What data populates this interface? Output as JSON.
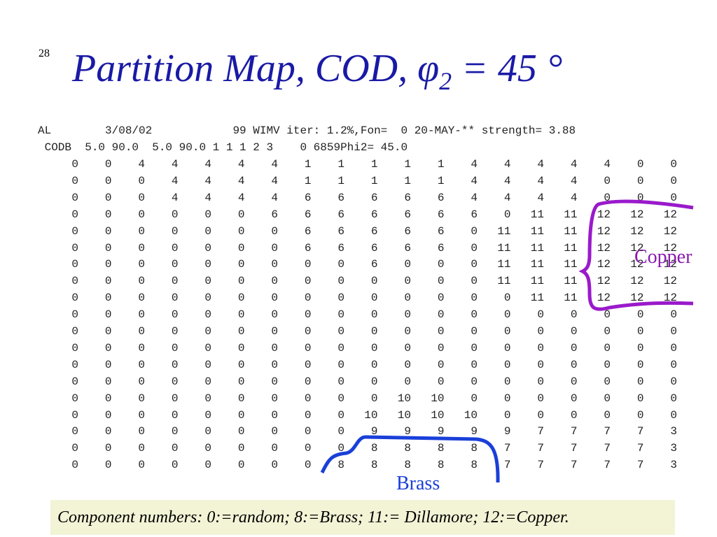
{
  "slide_number": "28",
  "title": {
    "main": "Partition Map, COD, ",
    "symbol": "φ",
    "subscript": "2",
    "rest": " = 45 °"
  },
  "header_lines": [
    "AL        3/08/02            99 WIMV iter: 1.2%,Fon=  0 20-MAY-** strength= 3.88",
    " CODB  5.0 90.0  5.0 90.0 1 1 1 2 3    0 6859Phi2= 45.0"
  ],
  "table": {
    "rows": [
      [
        0,
        0,
        4,
        4,
        4,
        4,
        4,
        1,
        1,
        1,
        1,
        1,
        4,
        4,
        4,
        4,
        4,
        0,
        0
      ],
      [
        0,
        0,
        0,
        4,
        4,
        4,
        4,
        1,
        1,
        1,
        1,
        1,
        4,
        4,
        4,
        4,
        0,
        0,
        0
      ],
      [
        0,
        0,
        0,
        4,
        4,
        4,
        4,
        6,
        6,
        6,
        6,
        6,
        4,
        4,
        4,
        4,
        0,
        0,
        0
      ],
      [
        0,
        0,
        0,
        0,
        0,
        0,
        6,
        6,
        6,
        6,
        6,
        6,
        6,
        0,
        11,
        11,
        12,
        12,
        12
      ],
      [
        0,
        0,
        0,
        0,
        0,
        0,
        0,
        6,
        6,
        6,
        6,
        6,
        0,
        11,
        11,
        11,
        12,
        12,
        12
      ],
      [
        0,
        0,
        0,
        0,
        0,
        0,
        0,
        6,
        6,
        6,
        6,
        6,
        0,
        11,
        11,
        11,
        12,
        12,
        12
      ],
      [
        0,
        0,
        0,
        0,
        0,
        0,
        0,
        0,
        0,
        6,
        0,
        0,
        0,
        11,
        11,
        11,
        12,
        12,
        12
      ],
      [
        0,
        0,
        0,
        0,
        0,
        0,
        0,
        0,
        0,
        0,
        0,
        0,
        0,
        11,
        11,
        11,
        12,
        12,
        12
      ],
      [
        0,
        0,
        0,
        0,
        0,
        0,
        0,
        0,
        0,
        0,
        0,
        0,
        0,
        0,
        11,
        11,
        12,
        12,
        12
      ],
      [
        0,
        0,
        0,
        0,
        0,
        0,
        0,
        0,
        0,
        0,
        0,
        0,
        0,
        0,
        0,
        0,
        0,
        0,
        0
      ],
      [
        0,
        0,
        0,
        0,
        0,
        0,
        0,
        0,
        0,
        0,
        0,
        0,
        0,
        0,
        0,
        0,
        0,
        0,
        0
      ],
      [
        0,
        0,
        0,
        0,
        0,
        0,
        0,
        0,
        0,
        0,
        0,
        0,
        0,
        0,
        0,
        0,
        0,
        0,
        0
      ],
      [
        0,
        0,
        0,
        0,
        0,
        0,
        0,
        0,
        0,
        0,
        0,
        0,
        0,
        0,
        0,
        0,
        0,
        0,
        0
      ],
      [
        0,
        0,
        0,
        0,
        0,
        0,
        0,
        0,
        0,
        0,
        0,
        0,
        0,
        0,
        0,
        0,
        0,
        0,
        0
      ],
      [
        0,
        0,
        0,
        0,
        0,
        0,
        0,
        0,
        0,
        0,
        10,
        10,
        0,
        0,
        0,
        0,
        0,
        0,
        0
      ],
      [
        0,
        0,
        0,
        0,
        0,
        0,
        0,
        0,
        0,
        10,
        10,
        10,
        10,
        0,
        0,
        0,
        0,
        0,
        0
      ],
      [
        0,
        0,
        0,
        0,
        0,
        0,
        0,
        0,
        0,
        9,
        9,
        9,
        9,
        9,
        7,
        7,
        7,
        7,
        3
      ],
      [
        0,
        0,
        0,
        0,
        0,
        0,
        0,
        0,
        0,
        8,
        8,
        8,
        8,
        7,
        7,
        7,
        7,
        7,
        3
      ],
      [
        0,
        0,
        0,
        0,
        0,
        0,
        0,
        0,
        8,
        8,
        8,
        8,
        8,
        7,
        7,
        7,
        7,
        7,
        3
      ]
    ]
  },
  "annotations": {
    "copper": "Copper",
    "brass": "Brass"
  },
  "caption": "Component numbers: 0:=random; 8:=Brass; 11:= Dillamore; 12:=Copper."
}
